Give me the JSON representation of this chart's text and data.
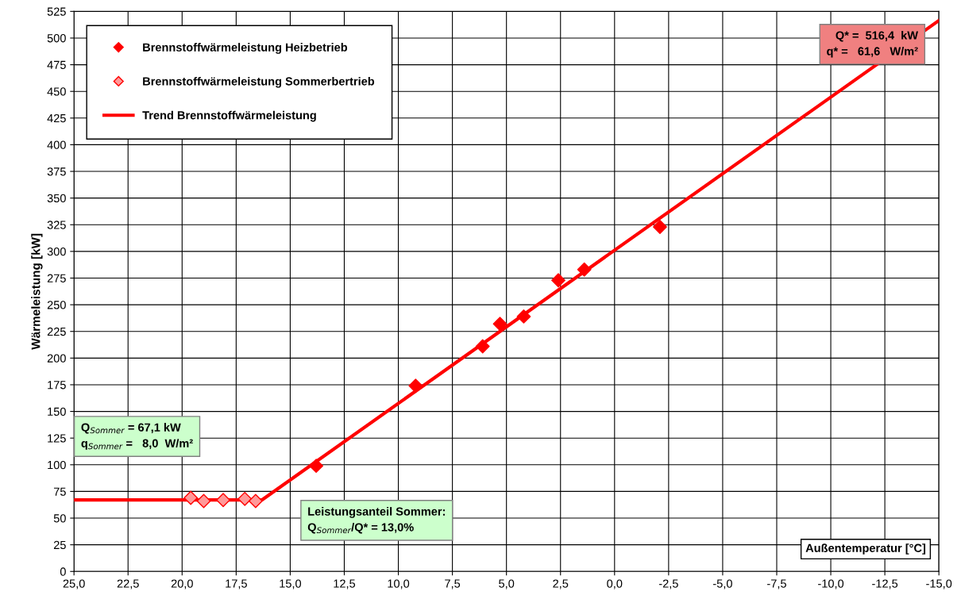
{
  "chart_data": {
    "type": "scatter",
    "ylabel": "Wärmeleistung [kW]",
    "xlabel": "Außentemperatur [°C]",
    "xlim": [
      25,
      -15
    ],
    "xticks": [
      {
        "value": 25,
        "label": "25,0"
      },
      {
        "value": 22.5,
        "label": "22,5"
      },
      {
        "value": 20,
        "label": "20,0"
      },
      {
        "value": 17.5,
        "label": "17,5"
      },
      {
        "value": 15,
        "label": "15,0"
      },
      {
        "value": 12.5,
        "label": "12,5"
      },
      {
        "value": 10,
        "label": "10,0"
      },
      {
        "value": 7.5,
        "label": "7,5"
      },
      {
        "value": 5,
        "label": "5,0"
      },
      {
        "value": 2.5,
        "label": "2,5"
      },
      {
        "value": 0,
        "label": "0,0"
      },
      {
        "value": -2.5,
        "label": "-2,5"
      },
      {
        "value": -5,
        "label": "-5,0"
      },
      {
        "value": -7.5,
        "label": "-7,5"
      },
      {
        "value": -10,
        "label": "-10,0"
      },
      {
        "value": -12.5,
        "label": "-12,5"
      },
      {
        "value": -15,
        "label": "-15,0"
      }
    ],
    "ylim": [
      0,
      525
    ],
    "yticks": [
      0,
      25,
      50,
      75,
      100,
      125,
      150,
      175,
      200,
      225,
      250,
      275,
      300,
      325,
      350,
      375,
      400,
      425,
      450,
      475,
      500,
      525
    ],
    "grid": true,
    "legend": "top left",
    "marker": "diamond",
    "series": [
      {
        "name": "Brennstoffwärmeleistung Heizbetrieb",
        "color": "#ff0000",
        "x": [
          13.8,
          9.2,
          6.1,
          5.3,
          4.2,
          2.6,
          1.4,
          -2.1
        ],
        "values": [
          99,
          174,
          211,
          232,
          239,
          273,
          283,
          323
        ]
      },
      {
        "name": "Brennstoffwärmeleistung Sommerbertrieb",
        "color": "#ff9999",
        "x": [
          19.6,
          19.0,
          18.1,
          17.1,
          16.6
        ],
        "values": [
          69,
          66,
          67,
          68,
          66
        ]
      },
      {
        "name": "Trend Brennstoffwärmeleistung",
        "type": "line",
        "color": "#ff0000",
        "marker": "none",
        "x": [
          25,
          16.3,
          -15
        ],
        "values": [
          67.1,
          67.1,
          516.4
        ]
      }
    ],
    "annotations": [
      "Q* =  516,4  kW\nq* =   61,6   W/m²",
      "Q$_{Sommer}$ = 67,1 kW\nq$_{Sommer}$ =   8,0  W/m²",
      "Leistungsanteil Sommer:\nQ$_{Sommer}$/Q* = 13,0%"
    ]
  }
}
